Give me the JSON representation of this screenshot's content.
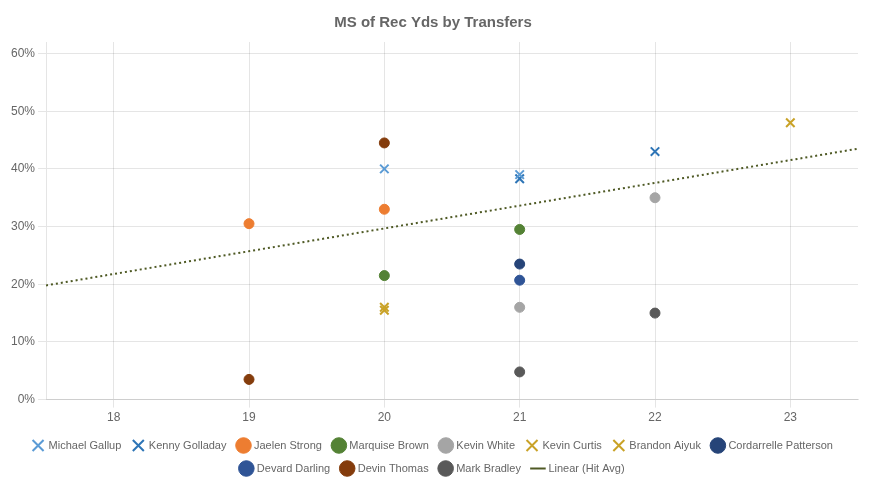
{
  "chart_data": {
    "type": "scatter",
    "title": "MS of Rec Yds by Transfers",
    "xlim": [
      17.5,
      23.5
    ],
    "xticks": [
      18,
      19,
      20,
      21,
      22,
      23
    ],
    "ylim": [
      0.0,
      0.62
    ],
    "yticks": [
      {
        "value": 0.0,
        "label": "0%"
      },
      {
        "value": 0.1,
        "label": "10%"
      },
      {
        "value": 0.2,
        "label": "20%"
      },
      {
        "value": 0.3,
        "label": "30%"
      },
      {
        "value": 0.4,
        "label": "40%"
      },
      {
        "value": 0.5,
        "label": "50%"
      },
      {
        "value": 0.6,
        "label": "60%"
      }
    ],
    "grid": true,
    "legend": "bottom",
    "series": [
      {
        "name": "Michael Gallup",
        "marker": "x",
        "color": "#5B9BD5",
        "x": [
          20,
          21
        ],
        "values": [
          0.4,
          0.39
        ]
      },
      {
        "name": "Kenny Golladay",
        "marker": "x",
        "color": "#2E75B6",
        "x": [
          21,
          22
        ],
        "values": [
          0.383,
          0.43
        ]
      },
      {
        "name": "Jaelen Strong",
        "marker": "o",
        "color": "#ED7D31",
        "x": [
          19,
          20
        ],
        "values": [
          0.305,
          0.33
        ]
      },
      {
        "name": "Marquise Brown",
        "marker": "o",
        "color": "#548235",
        "x": [
          20,
          21
        ],
        "values": [
          0.215,
          0.295
        ]
      },
      {
        "name": "Kevin White",
        "marker": "o",
        "color": "#A5A5A5",
        "x": [
          21,
          22
        ],
        "values": [
          0.16,
          0.35
        ]
      },
      {
        "name": "Kevin Curtis",
        "marker": "x",
        "color": "#C9A227",
        "x": [
          20
        ],
        "values": [
          0.155
        ]
      },
      {
        "name": "Brandon Aiyuk",
        "marker": "x",
        "color": "#C9A227",
        "x": [
          20,
          23
        ],
        "values": [
          0.16,
          0.48
        ]
      },
      {
        "name": "Cordarrelle Patterson",
        "marker": "o",
        "color": "#264478",
        "x": [
          21
        ],
        "values": [
          0.235
        ]
      },
      {
        "name": "Devard Darling",
        "marker": "o",
        "color": "#2F5496",
        "x": [
          21
        ],
        "values": [
          0.207
        ]
      },
      {
        "name": "Devin Thomas",
        "marker": "o",
        "color": "#843C0C",
        "x": [
          19,
          20
        ],
        "values": [
          0.035,
          0.445
        ]
      },
      {
        "name": "Mark Bradley",
        "marker": "o",
        "color": "#595959",
        "x": [
          21,
          22
        ],
        "values": [
          0.048,
          0.15
        ]
      },
      {
        "name": "Linear (Hit Avg)",
        "type": "line",
        "line_style": "dotted",
        "color": "#4E5924",
        "x": [
          17.5,
          23.5
        ],
        "values": [
          0.198,
          0.435
        ]
      }
    ]
  }
}
